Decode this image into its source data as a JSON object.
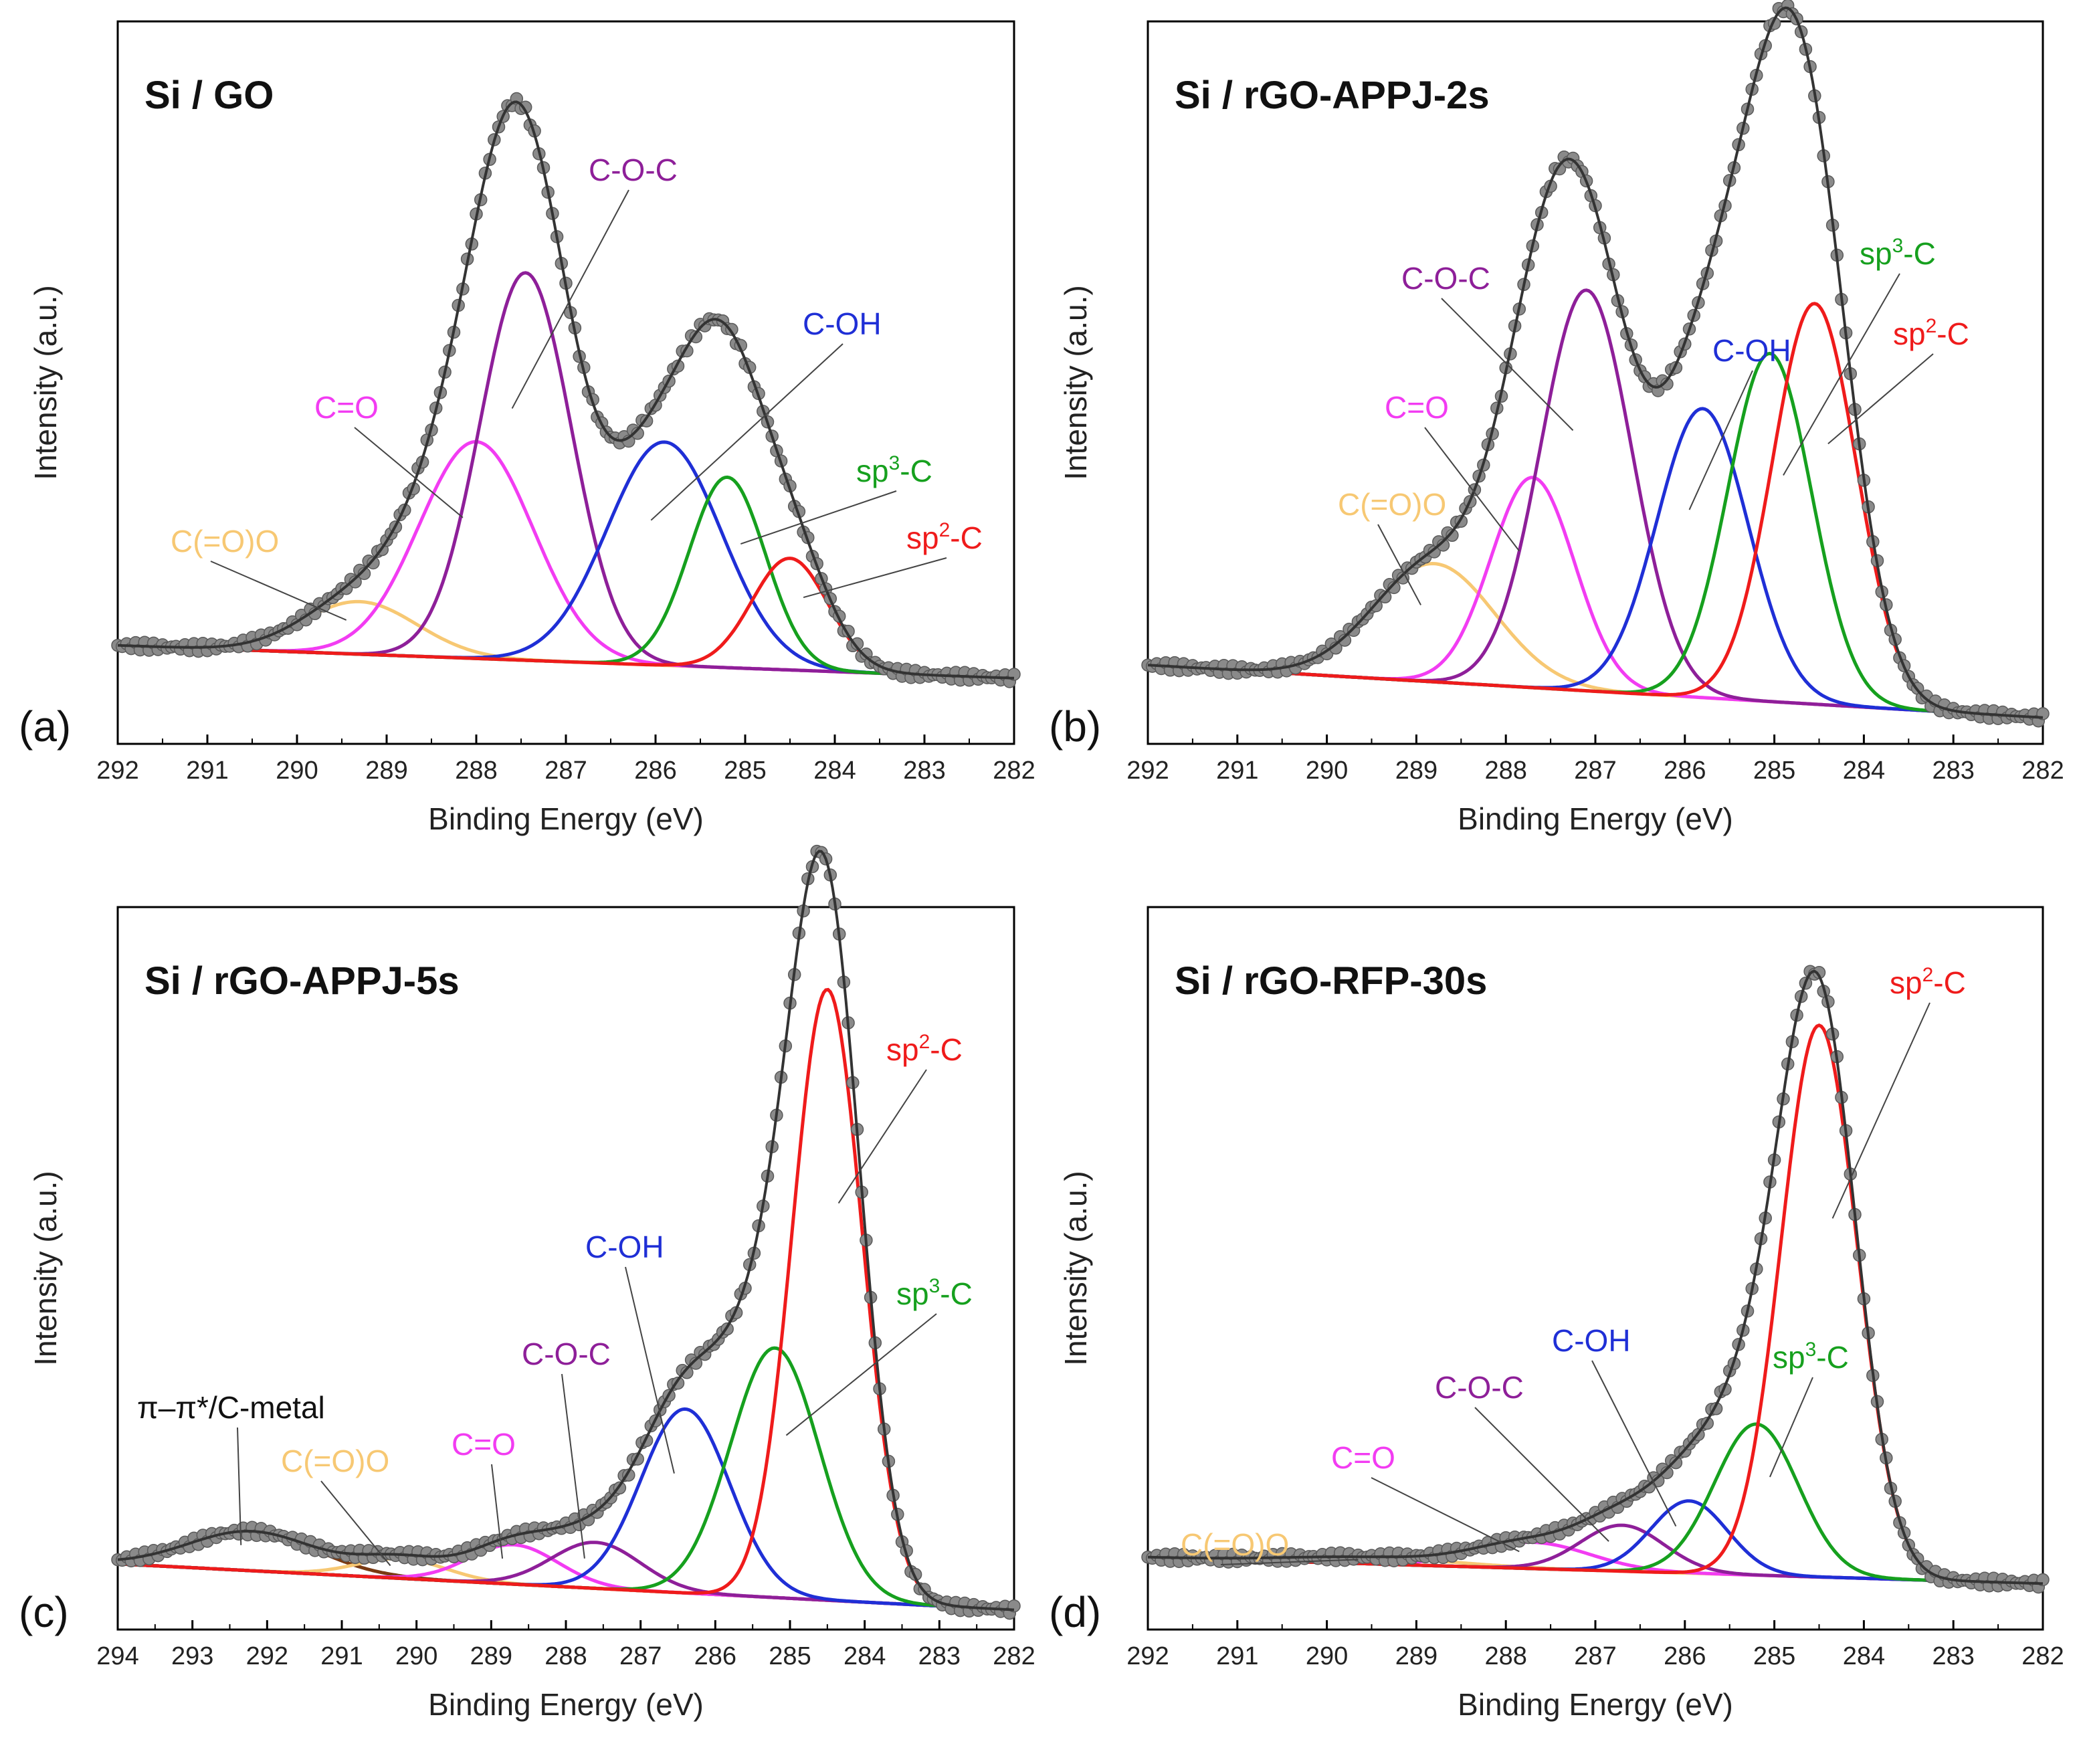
{
  "figure": {
    "colors": {
      "envelope": "#333333",
      "data_points": "#8a8a8a",
      "C(=O)O": "#f7c873",
      "C=O": "#f23cf2",
      "C-O-C": "#8e1f99",
      "C-OH": "#1f2fd6",
      "sp3-C": "#16a01e",
      "sp2-C": "#ef1b1b",
      "pi-pi": "#7a3a12"
    }
  },
  "chart_data": [
    {
      "type": "line",
      "panel_label": "(a)",
      "title": "Si / GO",
      "xlabel": "Binding Energy (eV)",
      "ylabel": "Intensity (a.u.)",
      "xlim": [
        292,
        282
      ],
      "xticks": [
        "292",
        "291",
        "290",
        "289",
        "288",
        "287",
        "286",
        "285",
        "284",
        "283",
        "282"
      ],
      "ylim": [
        0,
        1.1
      ],
      "baseline": [
        0.15,
        0.1
      ],
      "series": [
        {
          "name": "C(=O)O",
          "label": "C(=O)O",
          "center": 289.3,
          "fwhm": 1.5,
          "height": 0.08
        },
        {
          "name": "C=O",
          "label": "C=O",
          "center": 288.0,
          "fwhm": 1.5,
          "height": 0.33
        },
        {
          "name": "C-O-C",
          "label": "C-O-C",
          "center": 287.45,
          "fwhm": 1.2,
          "height": 0.59
        },
        {
          "name": "C-OH",
          "label": "C-OH",
          "center": 285.9,
          "fwhm": 1.5,
          "height": 0.34
        },
        {
          "name": "sp3-C",
          "label": "sp",
          "label_sup": "3",
          "label_suffix": "-C",
          "center": 285.2,
          "fwhm": 1.0,
          "height": 0.29
        },
        {
          "name": "sp2-C",
          "label": "sp",
          "label_sup": "2",
          "label_suffix": "-C",
          "center": 284.5,
          "fwhm": 1.0,
          "height": 0.17
        }
      ]
    },
    {
      "type": "line",
      "panel_label": "(b)",
      "title": "Si / rGO-APPJ-2s",
      "xlabel": "Binding Energy (eV)",
      "ylabel": "Intensity (a.u.)",
      "xlim": [
        292,
        282
      ],
      "xticks": [
        "292",
        "291",
        "290",
        "289",
        "288",
        "287",
        "286",
        "285",
        "284",
        "283",
        "282"
      ],
      "ylim": [
        0,
        1.1
      ],
      "baseline": [
        0.12,
        0.04
      ],
      "series": [
        {
          "name": "C(=O)O",
          "label": "C(=O)O",
          "center": 288.8,
          "fwhm": 1.6,
          "height": 0.18
        },
        {
          "name": "C=O",
          "label": "C=O",
          "center": 287.7,
          "fwhm": 1.1,
          "height": 0.32
        },
        {
          "name": "C-O-C",
          "label": "C-O-C",
          "center": 287.1,
          "fwhm": 1.2,
          "height": 0.61
        },
        {
          "name": "C-OH",
          "label": "C-OH",
          "center": 285.8,
          "fwhm": 1.2,
          "height": 0.44
        },
        {
          "name": "sp3-C",
          "label": "sp",
          "label_sup": "3",
          "label_suffix": "-C",
          "center": 285.05,
          "fwhm": 1.1,
          "height": 0.53
        },
        {
          "name": "sp2-C",
          "label": "sp",
          "label_sup": "2",
          "label_suffix": "-C",
          "center": 284.55,
          "fwhm": 1.1,
          "height": 0.61
        }
      ]
    },
    {
      "type": "line",
      "panel_label": "(c)",
      "title": "Si / rGO-APPJ-5s",
      "xlabel": "Binding Energy (eV)",
      "ylabel": "Intensity (a.u.)",
      "xlim": [
        294,
        282
      ],
      "xticks": [
        "294",
        "293",
        "292",
        "291",
        "290",
        "289",
        "288",
        "287",
        "286",
        "285",
        "284",
        "283",
        "282"
      ],
      "ylim": [
        0,
        1.1
      ],
      "baseline": [
        0.1,
        0.03
      ],
      "series": [
        {
          "name": "pi-pi",
          "label": "π–π*/C-metal",
          "center": 292.2,
          "fwhm": 2.0,
          "height": 0.06
        },
        {
          "name": "C(=O)O",
          "label": "C(=O)O",
          "center": 290.2,
          "fwhm": 1.4,
          "height": 0.03
        },
        {
          "name": "C=O",
          "label": "C=O",
          "center": 288.7,
          "fwhm": 1.4,
          "height": 0.06
        },
        {
          "name": "C-O-C",
          "label": "C-O-C",
          "center": 287.6,
          "fwhm": 1.4,
          "height": 0.07
        },
        {
          "name": "C-OH",
          "label": "C-OH",
          "center": 286.4,
          "fwhm": 1.4,
          "height": 0.28
        },
        {
          "name": "sp3-C",
          "label": "sp",
          "label_sup": "3",
          "label_suffix": "-C",
          "center": 285.2,
          "fwhm": 1.4,
          "height": 0.38
        },
        {
          "name": "sp2-C",
          "label": "sp",
          "label_sup": "2",
          "label_suffix": "-C",
          "center": 284.5,
          "fwhm": 1.1,
          "height": 0.93
        }
      ]
    },
    {
      "type": "line",
      "panel_label": "(d)",
      "title": "Si / rGO-RFP-30s",
      "xlabel": "Binding Energy (eV)",
      "ylabel": "Intensity (a.u.)",
      "xlim": [
        292,
        282
      ],
      "xticks": [
        "292",
        "291",
        "290",
        "289",
        "288",
        "287",
        "286",
        "285",
        "284",
        "283",
        "282"
      ],
      "ylim": [
        0,
        1.1
      ],
      "baseline": [
        0.11,
        0.07
      ],
      "series": [
        {
          "name": "C(=O)O",
          "label": "C(=O)O",
          "center": 289.5,
          "fwhm": 2.2,
          "height": 0.01
        },
        {
          "name": "C=O",
          "label": "C=O",
          "center": 287.7,
          "fwhm": 1.5,
          "height": 0.04
        },
        {
          "name": "C-O-C",
          "label": "C-O-C",
          "center": 286.7,
          "fwhm": 1.1,
          "height": 0.07
        },
        {
          "name": "C-OH",
          "label": "C-OH",
          "center": 285.95,
          "fwhm": 1.0,
          "height": 0.11
        },
        {
          "name": "sp3-C",
          "label": "sp",
          "label_sup": "3",
          "label_suffix": "-C",
          "center": 285.2,
          "fwhm": 1.1,
          "height": 0.23
        },
        {
          "name": "sp2-C",
          "label": "sp",
          "label_sup": "2",
          "label_suffix": "-C",
          "center": 284.5,
          "fwhm": 1.0,
          "height": 0.84
        }
      ]
    }
  ]
}
